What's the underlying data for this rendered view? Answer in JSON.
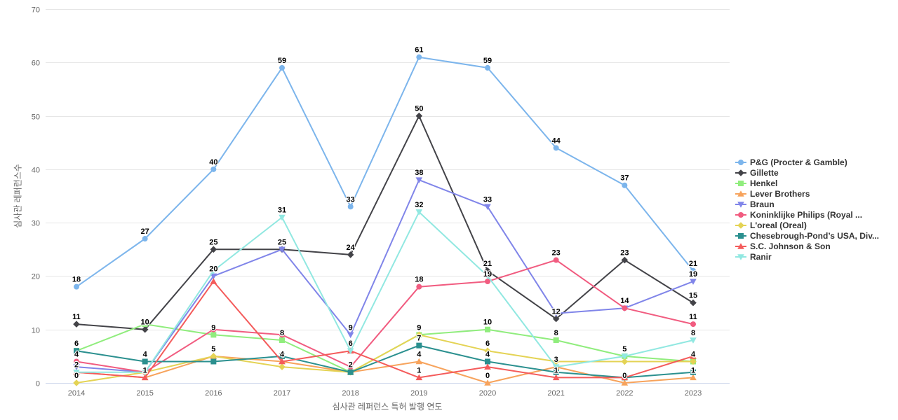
{
  "chart_data": {
    "type": "line",
    "title": "",
    "xlabel": "심사관 레퍼런스 특허 발행 연도",
    "ylabel": "심사관 레퍼런스수",
    "categories": [
      "2014",
      "2015",
      "2016",
      "2017",
      "2018",
      "2019",
      "2020",
      "2021",
      "2022",
      "2023"
    ],
    "ylim": [
      0,
      70
    ],
    "yticks": [
      0,
      10,
      20,
      30,
      40,
      50,
      60,
      70
    ],
    "grid": "horizontal",
    "legend_position": "right",
    "data_labels": true,
    "series": [
      {
        "name": "P&G (Procter & Gamble)",
        "color": "#7cb5ec",
        "marker": "circle",
        "values": [
          18,
          27,
          40,
          59,
          33,
          61,
          59,
          44,
          37,
          21
        ]
      },
      {
        "name": "Gillette",
        "color": "#434348",
        "marker": "diamond",
        "values": [
          11,
          10,
          25,
          25,
          24,
          50,
          21,
          12,
          23,
          15
        ]
      },
      {
        "name": "Henkel",
        "color": "#90ed7d",
        "marker": "square",
        "values": [
          6,
          11,
          9,
          8,
          2,
          9,
          10,
          8,
          5,
          4
        ]
      },
      {
        "name": "Lever Brothers",
        "color": "#f7a35c",
        "marker": "triangle",
        "values": [
          2,
          1,
          5,
          4,
          2,
          4,
          0,
          3,
          0,
          1
        ]
      },
      {
        "name": "Braun",
        "color": "#8085e9",
        "marker": "triangle-down",
        "values": [
          3,
          2,
          20,
          25,
          9,
          38,
          33,
          13,
          14,
          19
        ]
      },
      {
        "name": "Koninklijke Philips (Royal ...",
        "color": "#f15c80",
        "marker": "circle",
        "values": [
          4,
          2,
          10,
          9,
          3,
          18,
          19,
          23,
          14,
          11
        ]
      },
      {
        "name": "L'oreal (Oreal)",
        "color": "#e4d354",
        "marker": "diamond",
        "values": [
          0,
          2,
          5,
          3,
          2,
          9,
          6,
          4,
          4,
          4
        ]
      },
      {
        "name": "Chesebrough-Pond’s USA, Div...",
        "color": "#2b908f",
        "marker": "square",
        "values": [
          6,
          4,
          4,
          5,
          2,
          7,
          4,
          2,
          1,
          2
        ]
      },
      {
        "name": "S.C. Johnson & Son",
        "color": "#f45b5b",
        "marker": "triangle",
        "values": [
          2,
          1,
          19,
          4,
          6,
          1,
          3,
          1,
          1,
          5
        ]
      },
      {
        "name": "Ranir",
        "color": "#91e8e1",
        "marker": "triangle-down",
        "values": [
          2,
          2,
          21,
          31,
          6,
          32,
          20,
          3,
          5,
          8
        ]
      }
    ]
  },
  "colors": {
    "background": "#ffffff",
    "grid": "#e6e6e6",
    "axis_line": "#ccd6eb",
    "tick_label": "#666666",
    "axis_title": "#666666",
    "legend_text": "#333333",
    "data_label": "#000000"
  }
}
